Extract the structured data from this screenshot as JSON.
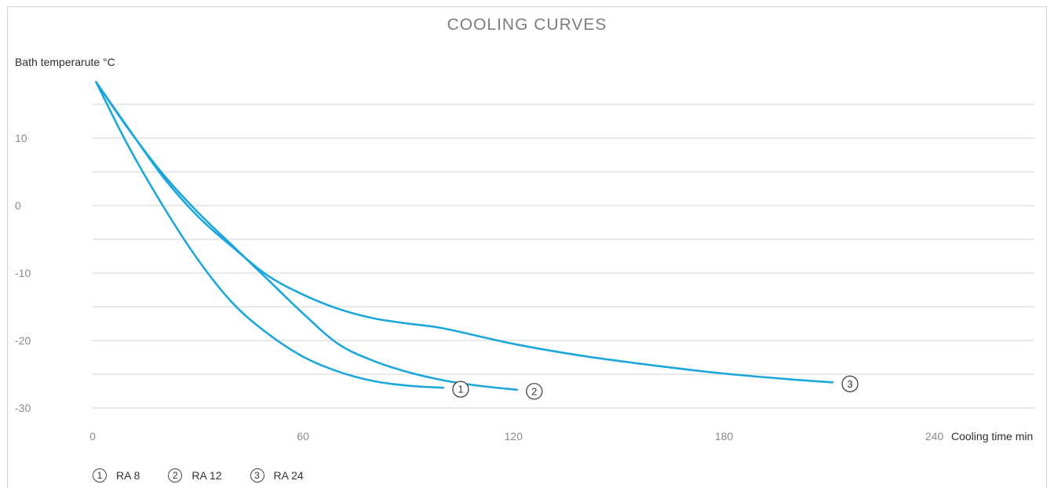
{
  "chart_data": {
    "type": "line",
    "title": "COOLING CURVES",
    "ylabel": "Bath temperarute °C",
    "xlabel": "Cooling time min",
    "xlim": [
      0,
      270
    ],
    "ylim": [
      -31,
      19
    ],
    "x_ticks": [
      0,
      60,
      120,
      180,
      240
    ],
    "y_ticks": [
      10,
      0,
      -10,
      -20,
      -30
    ],
    "grid_y_values": [
      15,
      10,
      5,
      0,
      -5,
      -10,
      -15,
      -20,
      -25,
      -30
    ],
    "grid": true,
    "line_color": "#1ba6dc",
    "grid_color": "#d9d9d9",
    "series": [
      {
        "name": "RA 8",
        "marker": "1",
        "x": [
          1,
          10,
          20,
          30,
          40,
          50,
          60,
          70,
          80,
          90,
          100
        ],
        "y": [
          18.3,
          9,
          0,
          -8,
          -14.5,
          -19,
          -22.4,
          -24.6,
          -26,
          -26.7,
          -27
        ]
      },
      {
        "name": "RA 12",
        "marker": "2",
        "x": [
          1,
          10,
          20,
          30,
          40,
          50,
          60,
          70,
          80,
          90,
          100,
          110,
          121
        ],
        "y": [
          18.3,
          11.5,
          4.7,
          -1,
          -6,
          -11,
          -16,
          -20.5,
          -23,
          -24.7,
          -25.9,
          -26.7,
          -27.3
        ]
      },
      {
        "name": "RA 24",
        "marker": "3",
        "x": [
          1,
          10,
          20,
          30,
          40,
          50,
          60,
          70,
          80,
          90,
          100,
          120,
          140,
          160,
          180,
          200,
          211
        ],
        "y": [
          18.3,
          11.6,
          4.3,
          -1.6,
          -6.2,
          -10.4,
          -13.2,
          -15.3,
          -16.7,
          -17.5,
          -18.2,
          -20.5,
          -22.3,
          -23.7,
          -24.9,
          -25.8,
          -26.2
        ]
      }
    ],
    "legend": [
      {
        "marker": "1",
        "label": "RA 8"
      },
      {
        "marker": "2",
        "label": "RA 12"
      },
      {
        "marker": "3",
        "label": "RA 24"
      }
    ],
    "legend_position": "bottom-left"
  }
}
